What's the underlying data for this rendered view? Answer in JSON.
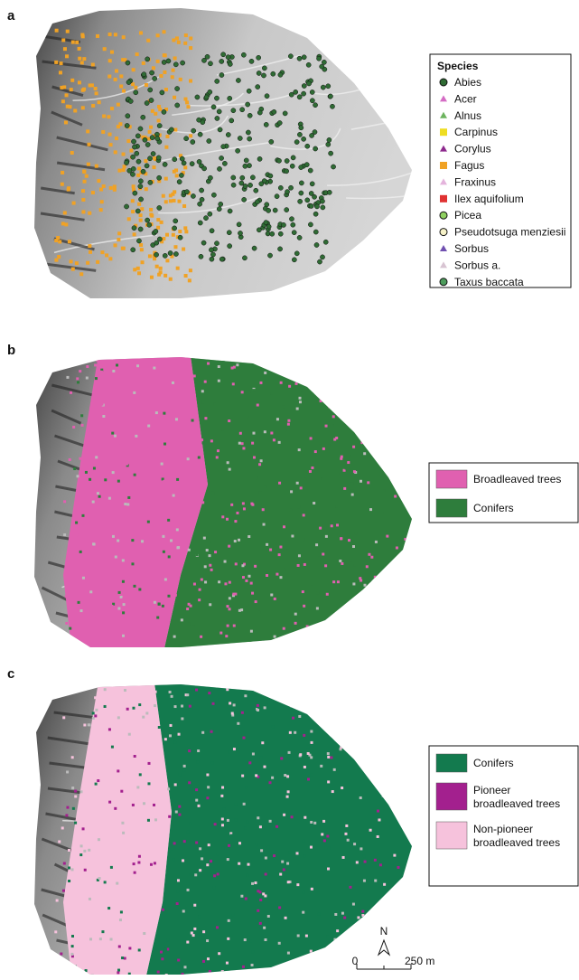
{
  "panels": [
    {
      "label": "a",
      "legend": {
        "title": "Species",
        "items": [
          {
            "name": "Abies",
            "shape": "circle",
            "color": "#2f6b34"
          },
          {
            "name": "Acer",
            "shape": "triangle",
            "color": "#d46cc4"
          },
          {
            "name": "Alnus",
            "shape": "triangle",
            "color": "#6cb35e"
          },
          {
            "name": "Carpinus",
            "shape": "square",
            "color": "#eedd22"
          },
          {
            "name": "Corylus",
            "shape": "triangle",
            "color": "#8d2a8d"
          },
          {
            "name": "Fagus",
            "shape": "square",
            "color": "#f0a225"
          },
          {
            "name": "Fraxinus",
            "shape": "triangle",
            "color": "#e4b4dc"
          },
          {
            "name": "Ilex aquifolium",
            "shape": "square",
            "color": "#e03232"
          },
          {
            "name": "Picea",
            "shape": "circle",
            "color": "#8fd060"
          },
          {
            "name": "Pseudotsuga menziesii",
            "shape": "circle",
            "color": "#f6f2c8"
          },
          {
            "name": "Sorbus",
            "shape": "triangle",
            "color": "#7050b0"
          },
          {
            "name": "Sorbus a.",
            "shape": "triangle",
            "color": "#d8c4d2"
          },
          {
            "name": "Taxus baccata",
            "shape": "circle",
            "color": "#4d9c5c"
          }
        ]
      }
    },
    {
      "label": "b",
      "legend": {
        "items": [
          {
            "lines": [
              "Broadleaved trees"
            ],
            "color": "#e060b0"
          },
          {
            "lines": [
              "Conifers"
            ],
            "color": "#2e7d3c"
          }
        ]
      }
    },
    {
      "label": "c",
      "legend": {
        "items": [
          {
            "lines": [
              "Conifers"
            ],
            "color": "#137a4e"
          },
          {
            "lines": [
              "Pioneer",
              "broadleaved trees"
            ],
            "color": "#a3208e"
          },
          {
            "lines": [
              "Non-pioneer",
              "broadleaved trees"
            ],
            "color": "#f6c2dc"
          }
        ]
      }
    }
  ],
  "scale_bar": {
    "north": "N",
    "start": "0",
    "end": "250 m"
  }
}
